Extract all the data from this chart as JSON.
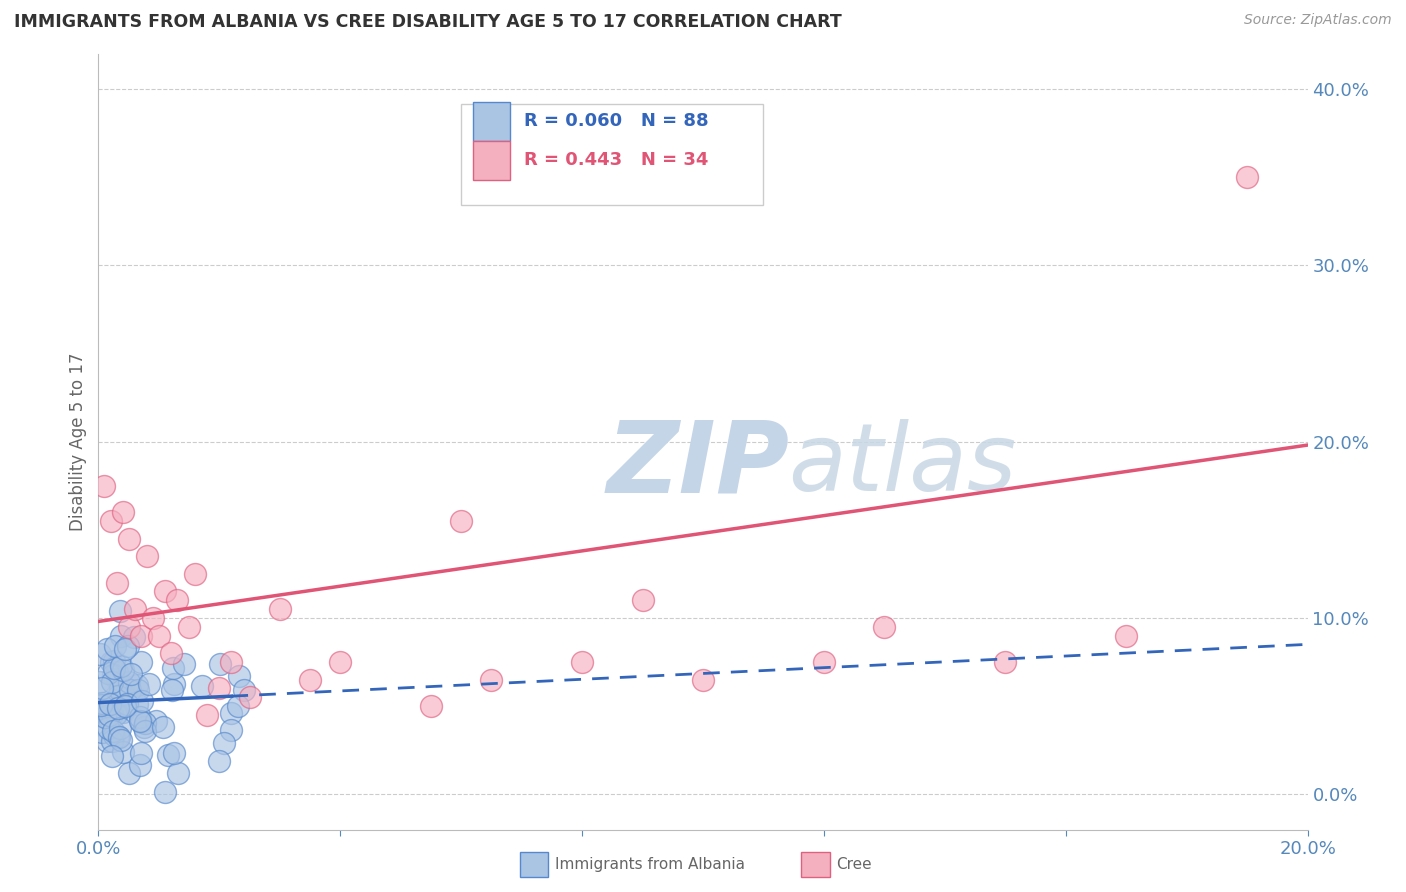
{
  "title": "IMMIGRANTS FROM ALBANIA VS CREE DISABILITY AGE 5 TO 17 CORRELATION CHART",
  "source_text": "Source: ZipAtlas.com",
  "ylabel": "Disability Age 5 to 17",
  "xlim": [
    0.0,
    0.2
  ],
  "ylim": [
    -0.02,
    0.42
  ],
  "xtick_labels_show": [
    "0.0%",
    "20.0%"
  ],
  "xtick_positions_show": [
    0.0,
    0.2
  ],
  "yticks": [
    0.0,
    0.1,
    0.2,
    0.3,
    0.4
  ],
  "ytick_labels": [
    "0.0%",
    "10.0%",
    "20.0%",
    "30.0%",
    "40.0%"
  ],
  "albania_color": "#aac4e4",
  "cree_color": "#f5b0c0",
  "albania_edge_color": "#5588cc",
  "cree_edge_color": "#e06080",
  "trend_albania_color": "#3366bb",
  "trend_cree_color": "#e05575",
  "legend_r_albania": "R = 0.060",
  "legend_n_albania": "N = 88",
  "legend_r_cree": "R = 0.443",
  "legend_n_cree": "N = 34",
  "watermark_zip": "ZIP",
  "watermark_atlas": "atlas",
  "albania_R": 0.06,
  "albania_N": 88,
  "cree_R": 0.443,
  "cree_N": 34,
  "grid_color": "#cccccc",
  "axis_color": "#5588bb",
  "bg_color": "#ffffff",
  "title_color": "#333333",
  "label_color": "#666666"
}
